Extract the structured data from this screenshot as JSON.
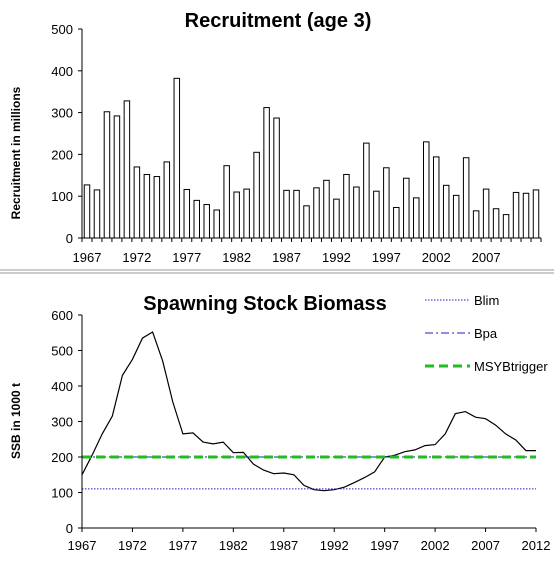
{
  "chart_data": [
    {
      "type": "bar",
      "title": "Recruitment (age 3)",
      "xlabel": "",
      "ylabel": "Recruitment in millions",
      "ylim": [
        0,
        500
      ],
      "yticks": [
        0,
        100,
        200,
        300,
        400,
        500
      ],
      "xtick_labels": [
        "1967",
        "1972",
        "1977",
        "1982",
        "1987",
        "1992",
        "1997",
        "2002",
        "2007"
      ],
      "grid": false,
      "bar_fill": "#ffffff",
      "bar_stroke": "#000000",
      "categories": [
        "1967",
        "1968",
        "1969",
        "1970",
        "1971",
        "1972",
        "1973",
        "1974",
        "1975",
        "1976",
        "1977",
        "1978",
        "1979",
        "1980",
        "1981",
        "1982",
        "1983",
        "1984",
        "1985",
        "1986",
        "1987",
        "1988",
        "1989",
        "1990",
        "1991",
        "1992",
        "1993",
        "1994",
        "1995",
        "1996",
        "1997",
        "1998",
        "1999",
        "2000",
        "2001",
        "2002",
        "2003",
        "2004",
        "2005",
        "2006",
        "2007",
        "2008",
        "2009",
        "2010",
        "2011",
        "2012"
      ],
      "values": [
        127,
        115,
        302,
        292,
        328,
        170,
        152,
        147,
        182,
        382,
        116,
        90,
        80,
        67,
        173,
        110,
        117,
        205,
        312,
        287,
        114,
        114,
        77,
        120,
        138,
        93,
        152,
        122,
        227,
        112,
        168,
        73,
        143,
        96,
        230,
        194,
        126,
        102,
        192,
        65,
        117,
        70,
        56,
        109,
        107,
        115
      ]
    },
    {
      "type": "line",
      "title": "Spawning Stock Biomass",
      "xlabel": "",
      "ylabel": "SSB in 1000 t",
      "ylim": [
        0,
        600
      ],
      "yticks": [
        0,
        100,
        200,
        300,
        400,
        500,
        600
      ],
      "xlim": [
        1967,
        2012
      ],
      "xticks": [
        1967,
        1972,
        1977,
        1982,
        1987,
        1992,
        1997,
        2002,
        2007,
        2012
      ],
      "grid": false,
      "legend_position": "top-right",
      "series": [
        {
          "name": "",
          "color": "#000000",
          "x": [
            1967,
            1968,
            1969,
            1970,
            1971,
            1972,
            1973,
            1974,
            1975,
            1976,
            1977,
            1978,
            1979,
            1980,
            1981,
            1982,
            1983,
            1984,
            1985,
            1986,
            1987,
            1988,
            1989,
            1990,
            1991,
            1992,
            1993,
            1994,
            1995,
            1996,
            1997,
            1998,
            1999,
            2000,
            2001,
            2002,
            2003,
            2004,
            2005,
            2006,
            2007,
            2008,
            2009,
            2010,
            2011,
            2012
          ],
          "values": [
            150,
            205,
            265,
            315,
            430,
            475,
            535,
            552,
            470,
            355,
            265,
            268,
            242,
            237,
            242,
            212,
            213,
            180,
            163,
            153,
            155,
            150,
            120,
            108,
            105,
            108,
            115,
            128,
            142,
            158,
            200,
            205,
            215,
            220,
            232,
            235,
            265,
            322,
            328,
            312,
            308,
            290,
            265,
            248,
            218,
            218
          ]
        },
        {
          "name": "Blim",
          "color": "#1f1fb8",
          "style": "dotted",
          "x": [
            1967,
            2012
          ],
          "values": [
            110,
            110
          ]
        },
        {
          "name": "Bpa",
          "color": "#1f1fb8",
          "style": "dashdot",
          "x": [
            1967,
            2012
          ],
          "values": [
            200,
            200
          ]
        },
        {
          "name": "MSYBtrigger",
          "color": "#22bb22",
          "style": "dashed",
          "x": [
            1967,
            2012
          ],
          "values": [
            200,
            200
          ]
        }
      ]
    }
  ]
}
